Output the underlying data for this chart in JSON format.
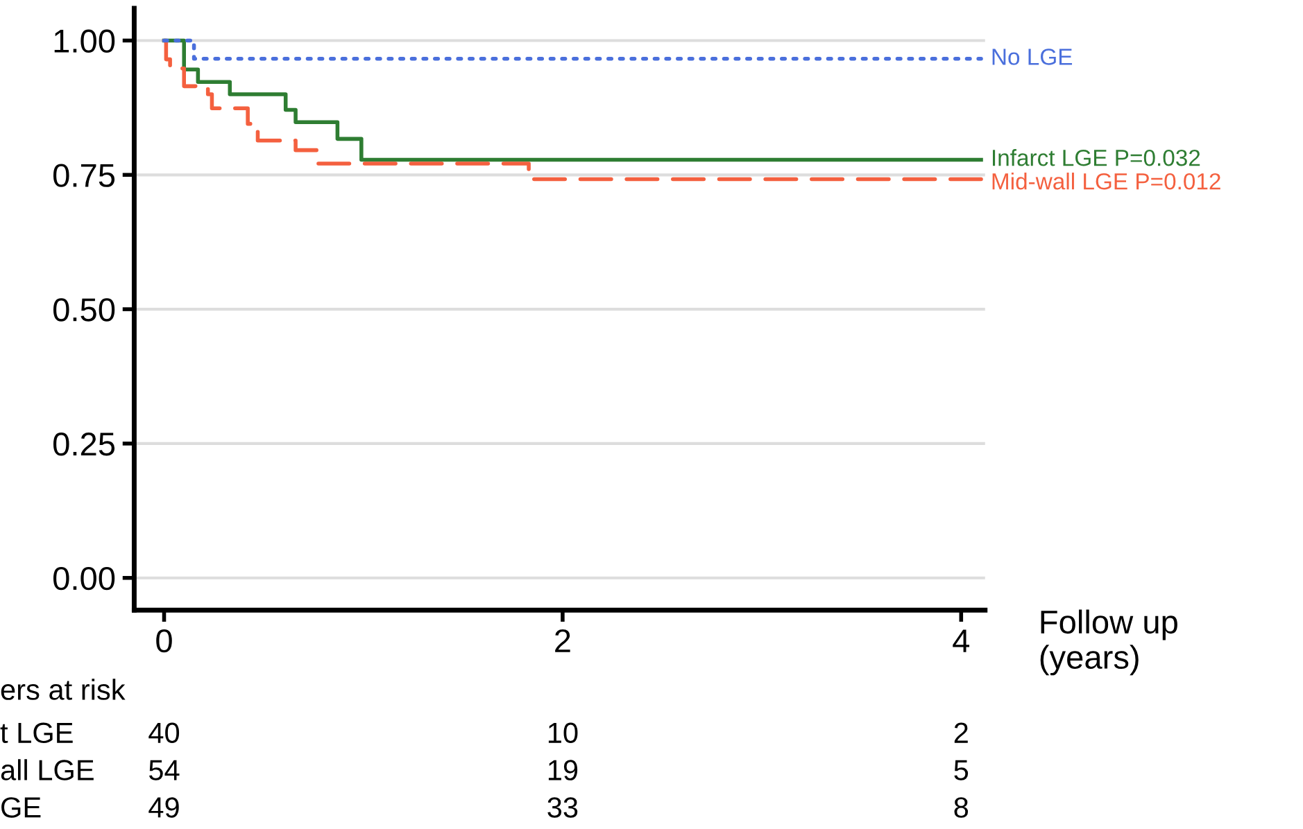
{
  "chart_data": {
    "type": "step",
    "xlabel": "Follow up\n(years)",
    "xlim": [
      -0.15,
      4.12
    ],
    "ylim": [
      -0.06,
      1.06
    ],
    "xticks": [
      0,
      2,
      4
    ],
    "yticks": [
      {
        "value": 0,
        "label": "0.00"
      },
      {
        "value": 0.25,
        "label": "0.25"
      },
      {
        "value": 0.5,
        "label": "0.50"
      },
      {
        "value": 0.75,
        "label": "0.75"
      },
      {
        "value": 1,
        "label": "1.00"
      }
    ],
    "grid": "y",
    "legend": false,
    "series": [
      {
        "name": "No LGE",
        "color": "#4a6fdc",
        "line_style": "dotted",
        "x": [
          0,
          0.15,
          4.1
        ],
        "values": [
          1.0,
          0.966,
          0.966
        ]
      },
      {
        "name": "Infarct LGE P=0.032",
        "color": "#2e7d32",
        "line_style": "solid",
        "x": [
          0,
          0.1,
          0.17,
          0.33,
          0.61,
          0.66,
          0.87,
          0.99,
          4.1
        ],
        "values": [
          1.0,
          0.946,
          0.923,
          0.9,
          0.871,
          0.848,
          0.817,
          0.778,
          0.778
        ]
      },
      {
        "name": "Mid-wall LGE P=0.012",
        "color": "#f4603f",
        "line_style": "dashed",
        "x": [
          0,
          0.01,
          0.03,
          0.1,
          0.22,
          0.24,
          0.42,
          0.47,
          0.66,
          0.77,
          1.83,
          4.1
        ],
        "values": [
          1.0,
          0.965,
          0.948,
          0.915,
          0.9,
          0.874,
          0.845,
          0.814,
          0.796,
          0.771,
          0.742,
          0.742
        ]
      }
    ],
    "annotations": [
      "ers at risk",
      "t LGE",
      "40",
      "10",
      "2",
      "all LGE",
      "54",
      "19",
      "5",
      "GE",
      "49",
      "33",
      "8"
    ]
  }
}
